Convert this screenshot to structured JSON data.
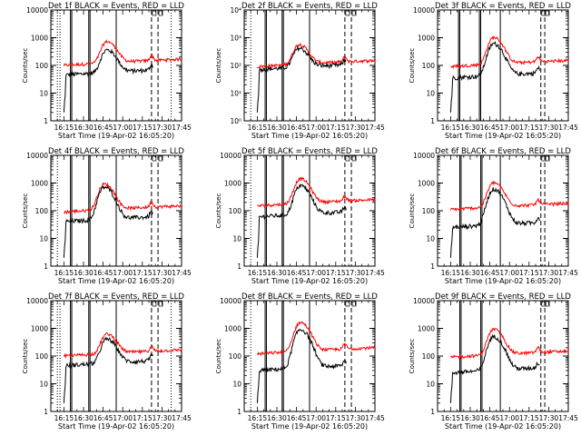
{
  "figure": {
    "background": "#ffffff",
    "event_color": "#000000",
    "lld_color": "#ff0000"
  },
  "chart_data": [
    {
      "type": "line",
      "title": "Det 1f BLACK = Events, RED = LLD",
      "xlabel": "Start Time (19-Apr-02 16:05:20)",
      "ylabel": "Counts/sec",
      "ylog": true,
      "xlim": [
        "16:05",
        "17:45"
      ],
      "ylim": [
        1,
        10000
      ],
      "x_ticks": [
        "16:15",
        "16:30",
        "16:45",
        "17:00",
        "17:15",
        "17:30",
        "17:45"
      ],
      "y_ticks": [
        "1",
        "10",
        "100",
        "1000",
        "10000"
      ],
      "start": "16:15",
      "peak": "16:48",
      "end": "17:22",
      "base_black": 45,
      "base_red": 100,
      "peak_black": 350,
      "peak_red": 700,
      "gap_start": "17:23",
      "red_end": "17:45",
      "vlines_solid": [
        "16:20",
        "16:21",
        "16:34",
        "16:35",
        "16:55"
      ],
      "vlines_dashed": [
        "17:22",
        "17:27"
      ],
      "vlines_dotted": [
        "16:10",
        "16:12",
        "17:37"
      ],
      "series": [
        {
          "name": "Events",
          "color": "#000000"
        },
        {
          "name": "LLD",
          "color": "#ff0000"
        }
      ]
    },
    {
      "type": "line",
      "title": "Det 2f BLACK = Events, RED = LLD",
      "xlabel": "Start Time (19-Apr-02 16:05:20)",
      "ylabel": "Counts/sec",
      "ylog": true,
      "xlim": [
        "16:05",
        "17:45"
      ],
      "ylim": [
        1,
        10000
      ],
      "x_ticks": [
        "16:15",
        "16:30",
        "16:45",
        "17:00",
        "17:15",
        "17:30",
        "17:45"
      ],
      "y_ticks": [
        "10⁰",
        "10¹",
        "10²",
        "10³",
        "10⁴"
      ],
      "start": "16:15",
      "peak": "16:47",
      "end": "17:22",
      "base_black": 70,
      "base_red": 90,
      "peak_black": 400,
      "peak_red": 550,
      "gap_start": "17:23",
      "red_end": "17:45",
      "vlines_solid": [
        "16:21",
        "16:22",
        "16:34",
        "16:35",
        "16:55"
      ],
      "vlines_dashed": [
        "17:22",
        "17:27"
      ],
      "vlines_dotted": [
        "16:10"
      ],
      "series": [
        {
          "name": "Events",
          "color": "#000000"
        },
        {
          "name": "LLD",
          "color": "#ff0000"
        }
      ]
    },
    {
      "type": "line",
      "title": "Det 3f BLACK = Events, RED = LLD",
      "xlabel": "Start Time (19-Apr-02 16:05:20)",
      "ylabel": "Counts/sec",
      "ylog": true,
      "xlim": [
        "16:05",
        "17:45"
      ],
      "ylim": [
        1,
        10000
      ],
      "x_ticks": [
        "16:15",
        "16:30",
        "16:45",
        "17:00",
        "17:15",
        "17:30",
        "17:45"
      ],
      "y_ticks": [
        "1",
        "10",
        "100",
        "1000",
        "10000"
      ],
      "start": "16:15",
      "peak": "16:48",
      "end": "17:22",
      "base_black": 35,
      "base_red": 90,
      "peak_black": 600,
      "peak_red": 1000,
      "gap_start": "17:23",
      "red_end": "17:45",
      "vlines_solid": [
        "16:21",
        "16:22",
        "16:37",
        "16:38",
        "16:53"
      ],
      "vlines_dashed": [
        "17:24",
        "17:27"
      ],
      "vlines_dotted": [],
      "series": [
        {
          "name": "Events",
          "color": "#000000"
        },
        {
          "name": "LLD",
          "color": "#ff0000"
        }
      ]
    },
    {
      "type": "line",
      "title": "Det 4f BLACK = Events, RED = LLD",
      "xlabel": "Start Time (19-Apr-02 16:05:20)",
      "ylabel": "Counts/sec",
      "ylog": true,
      "xlim": [
        "16:05",
        "17:45"
      ],
      "ylim": [
        1,
        10000
      ],
      "x_ticks": [
        "16:15",
        "16:30",
        "16:45",
        "17:00",
        "17:15",
        "17:30",
        "17:45"
      ],
      "y_ticks": [
        "1",
        "10",
        "100",
        "1000",
        "10000"
      ],
      "start": "16:15",
      "peak": "16:46",
      "end": "17:22",
      "base_black": 40,
      "base_red": 90,
      "peak_black": 700,
      "peak_red": 900,
      "gap_start": "17:23",
      "red_end": "17:45",
      "vlines_solid": [
        "16:20",
        "16:21",
        "16:34",
        "16:35",
        "16:55"
      ],
      "vlines_dashed": [
        "17:22",
        "17:27"
      ],
      "vlines_dotted": [
        "16:10"
      ],
      "series": [
        {
          "name": "Events",
          "color": "#000000"
        },
        {
          "name": "LLD",
          "color": "#ff0000"
        }
      ]
    },
    {
      "type": "line",
      "title": "Det 5f BLACK = Events, RED = LLD",
      "xlabel": "Start Time (19-Apr-02 16:05:20)",
      "ylabel": "Counts/sec",
      "ylog": true,
      "xlim": [
        "16:05",
        "17:45"
      ],
      "ylim": [
        1,
        10000
      ],
      "x_ticks": [
        "16:15",
        "16:30",
        "16:45",
        "17:00",
        "17:15",
        "17:30",
        "17:45"
      ],
      "y_ticks": [
        "1",
        "10",
        "100",
        "1000",
        "10000"
      ],
      "start": "16:15",
      "peak": "16:48",
      "end": "17:22",
      "base_black": 60,
      "base_red": 150,
      "peak_black": 800,
      "peak_red": 1400,
      "gap_start": "17:23",
      "red_end": "17:45",
      "vlines_solid": [
        "16:21",
        "16:22",
        "16:34",
        "16:35",
        "16:55"
      ],
      "vlines_dashed": [
        "17:22",
        "17:27"
      ],
      "vlines_dotted": [
        "16:10"
      ],
      "series": [
        {
          "name": "Events",
          "color": "#000000"
        },
        {
          "name": "LLD",
          "color": "#ff0000"
        }
      ]
    },
    {
      "type": "line",
      "title": "Det 6f BLACK = Events, RED = LLD",
      "xlabel": "Start Time (19-Apr-02 16:05:20)",
      "ylabel": "Counts/sec",
      "ylog": true,
      "xlim": [
        "16:05",
        "17:45"
      ],
      "ylim": [
        1,
        10000
      ],
      "x_ticks": [
        "16:15",
        "16:30",
        "16:45",
        "17:00",
        "17:15",
        "17:30",
        "17:45"
      ],
      "y_ticks": [
        "1",
        "10",
        "100",
        "1000",
        "10000"
      ],
      "start": "16:15",
      "peak": "16:48",
      "end": "17:22",
      "base_black": 25,
      "base_red": 110,
      "peak_black": 600,
      "peak_red": 1000,
      "gap_start": "17:23",
      "red_end": "17:45",
      "vlines_solid": [
        "16:22",
        "16:23",
        "16:38",
        "16:39",
        "16:53"
      ],
      "vlines_dashed": [
        "17:24",
        "17:27"
      ],
      "vlines_dotted": [],
      "series": [
        {
          "name": "Events",
          "color": "#000000"
        },
        {
          "name": "LLD",
          "color": "#ff0000"
        }
      ]
    },
    {
      "type": "line",
      "title": "Det 7f BLACK = Events, RED = LLD",
      "xlabel": "Start Time (19-Apr-02 16:05:20)",
      "ylabel": "Counts/sec",
      "ylog": true,
      "xlim": [
        "16:05",
        "17:45"
      ],
      "ylim": [
        1,
        10000
      ],
      "x_ticks": [
        "16:15",
        "16:30",
        "16:45",
        "17:00",
        "17:15",
        "17:30",
        "17:45"
      ],
      "y_ticks": [
        "1",
        "10",
        "100",
        "1000",
        "10000"
      ],
      "start": "16:15",
      "peak": "16:48",
      "end": "17:22",
      "base_black": 45,
      "base_red": 100,
      "peak_black": 400,
      "peak_red": 600,
      "gap_start": "17:23",
      "red_end": "17:45",
      "vlines_solid": [
        "16:20",
        "16:21",
        "16:34",
        "16:35",
        "16:55"
      ],
      "vlines_dashed": [
        "17:22",
        "17:27"
      ],
      "vlines_dotted": [
        "16:10",
        "16:12",
        "17:37"
      ],
      "series": [
        {
          "name": "Events",
          "color": "#000000"
        },
        {
          "name": "LLD",
          "color": "#ff0000"
        }
      ]
    },
    {
      "type": "line",
      "title": "Det 8f BLACK = Events, RED = LLD",
      "xlabel": "Start Time (19-Apr-02 16:05:20)",
      "ylabel": "Counts/sec",
      "ylog": true,
      "xlim": [
        "16:05",
        "17:45"
      ],
      "ylim": [
        1,
        10000
      ],
      "x_ticks": [
        "16:15",
        "16:30",
        "16:45",
        "17:00",
        "17:15",
        "17:30",
        "17:45"
      ],
      "y_ticks": [
        "1",
        "10",
        "100",
        "1000",
        "10000"
      ],
      "start": "16:15",
      "peak": "16:48",
      "end": "17:22",
      "base_black": 30,
      "base_red": 120,
      "peak_black": 900,
      "peak_red": 1600,
      "gap_start": "17:23",
      "red_end": "17:45",
      "vlines_solid": [
        "16:21",
        "16:22",
        "16:34",
        "16:35",
        "16:55"
      ],
      "vlines_dashed": [
        "17:22",
        "17:27"
      ],
      "vlines_dotted": [
        "16:10"
      ],
      "series": [
        {
          "name": "Events",
          "color": "#000000"
        },
        {
          "name": "LLD",
          "color": "#ff0000"
        }
      ]
    },
    {
      "type": "line",
      "title": "Det 9f BLACK = Events, RED = LLD",
      "xlabel": "Start Time (19-Apr-02 16:05:20)",
      "ylabel": "Counts/sec",
      "ylog": true,
      "xlim": [
        "16:05",
        "17:45"
      ],
      "ylim": [
        1,
        10000
      ],
      "x_ticks": [
        "16:15",
        "16:30",
        "16:45",
        "17:00",
        "17:15",
        "17:30",
        "17:45"
      ],
      "y_ticks": [
        "1",
        "10",
        "100",
        "1000",
        "10000"
      ],
      "start": "16:15",
      "peak": "16:48",
      "end": "17:22",
      "base_black": 25,
      "base_red": 90,
      "peak_black": 500,
      "peak_red": 900,
      "gap_start": "17:23",
      "red_end": "17:45",
      "vlines_solid": [
        "16:22",
        "16:23",
        "16:38",
        "16:39",
        "16:53"
      ],
      "vlines_dashed": [
        "17:24",
        "17:27"
      ],
      "vlines_dotted": [],
      "series": [
        {
          "name": "Events",
          "color": "#000000"
        },
        {
          "name": "LLD",
          "color": "#ff0000"
        }
      ]
    }
  ]
}
